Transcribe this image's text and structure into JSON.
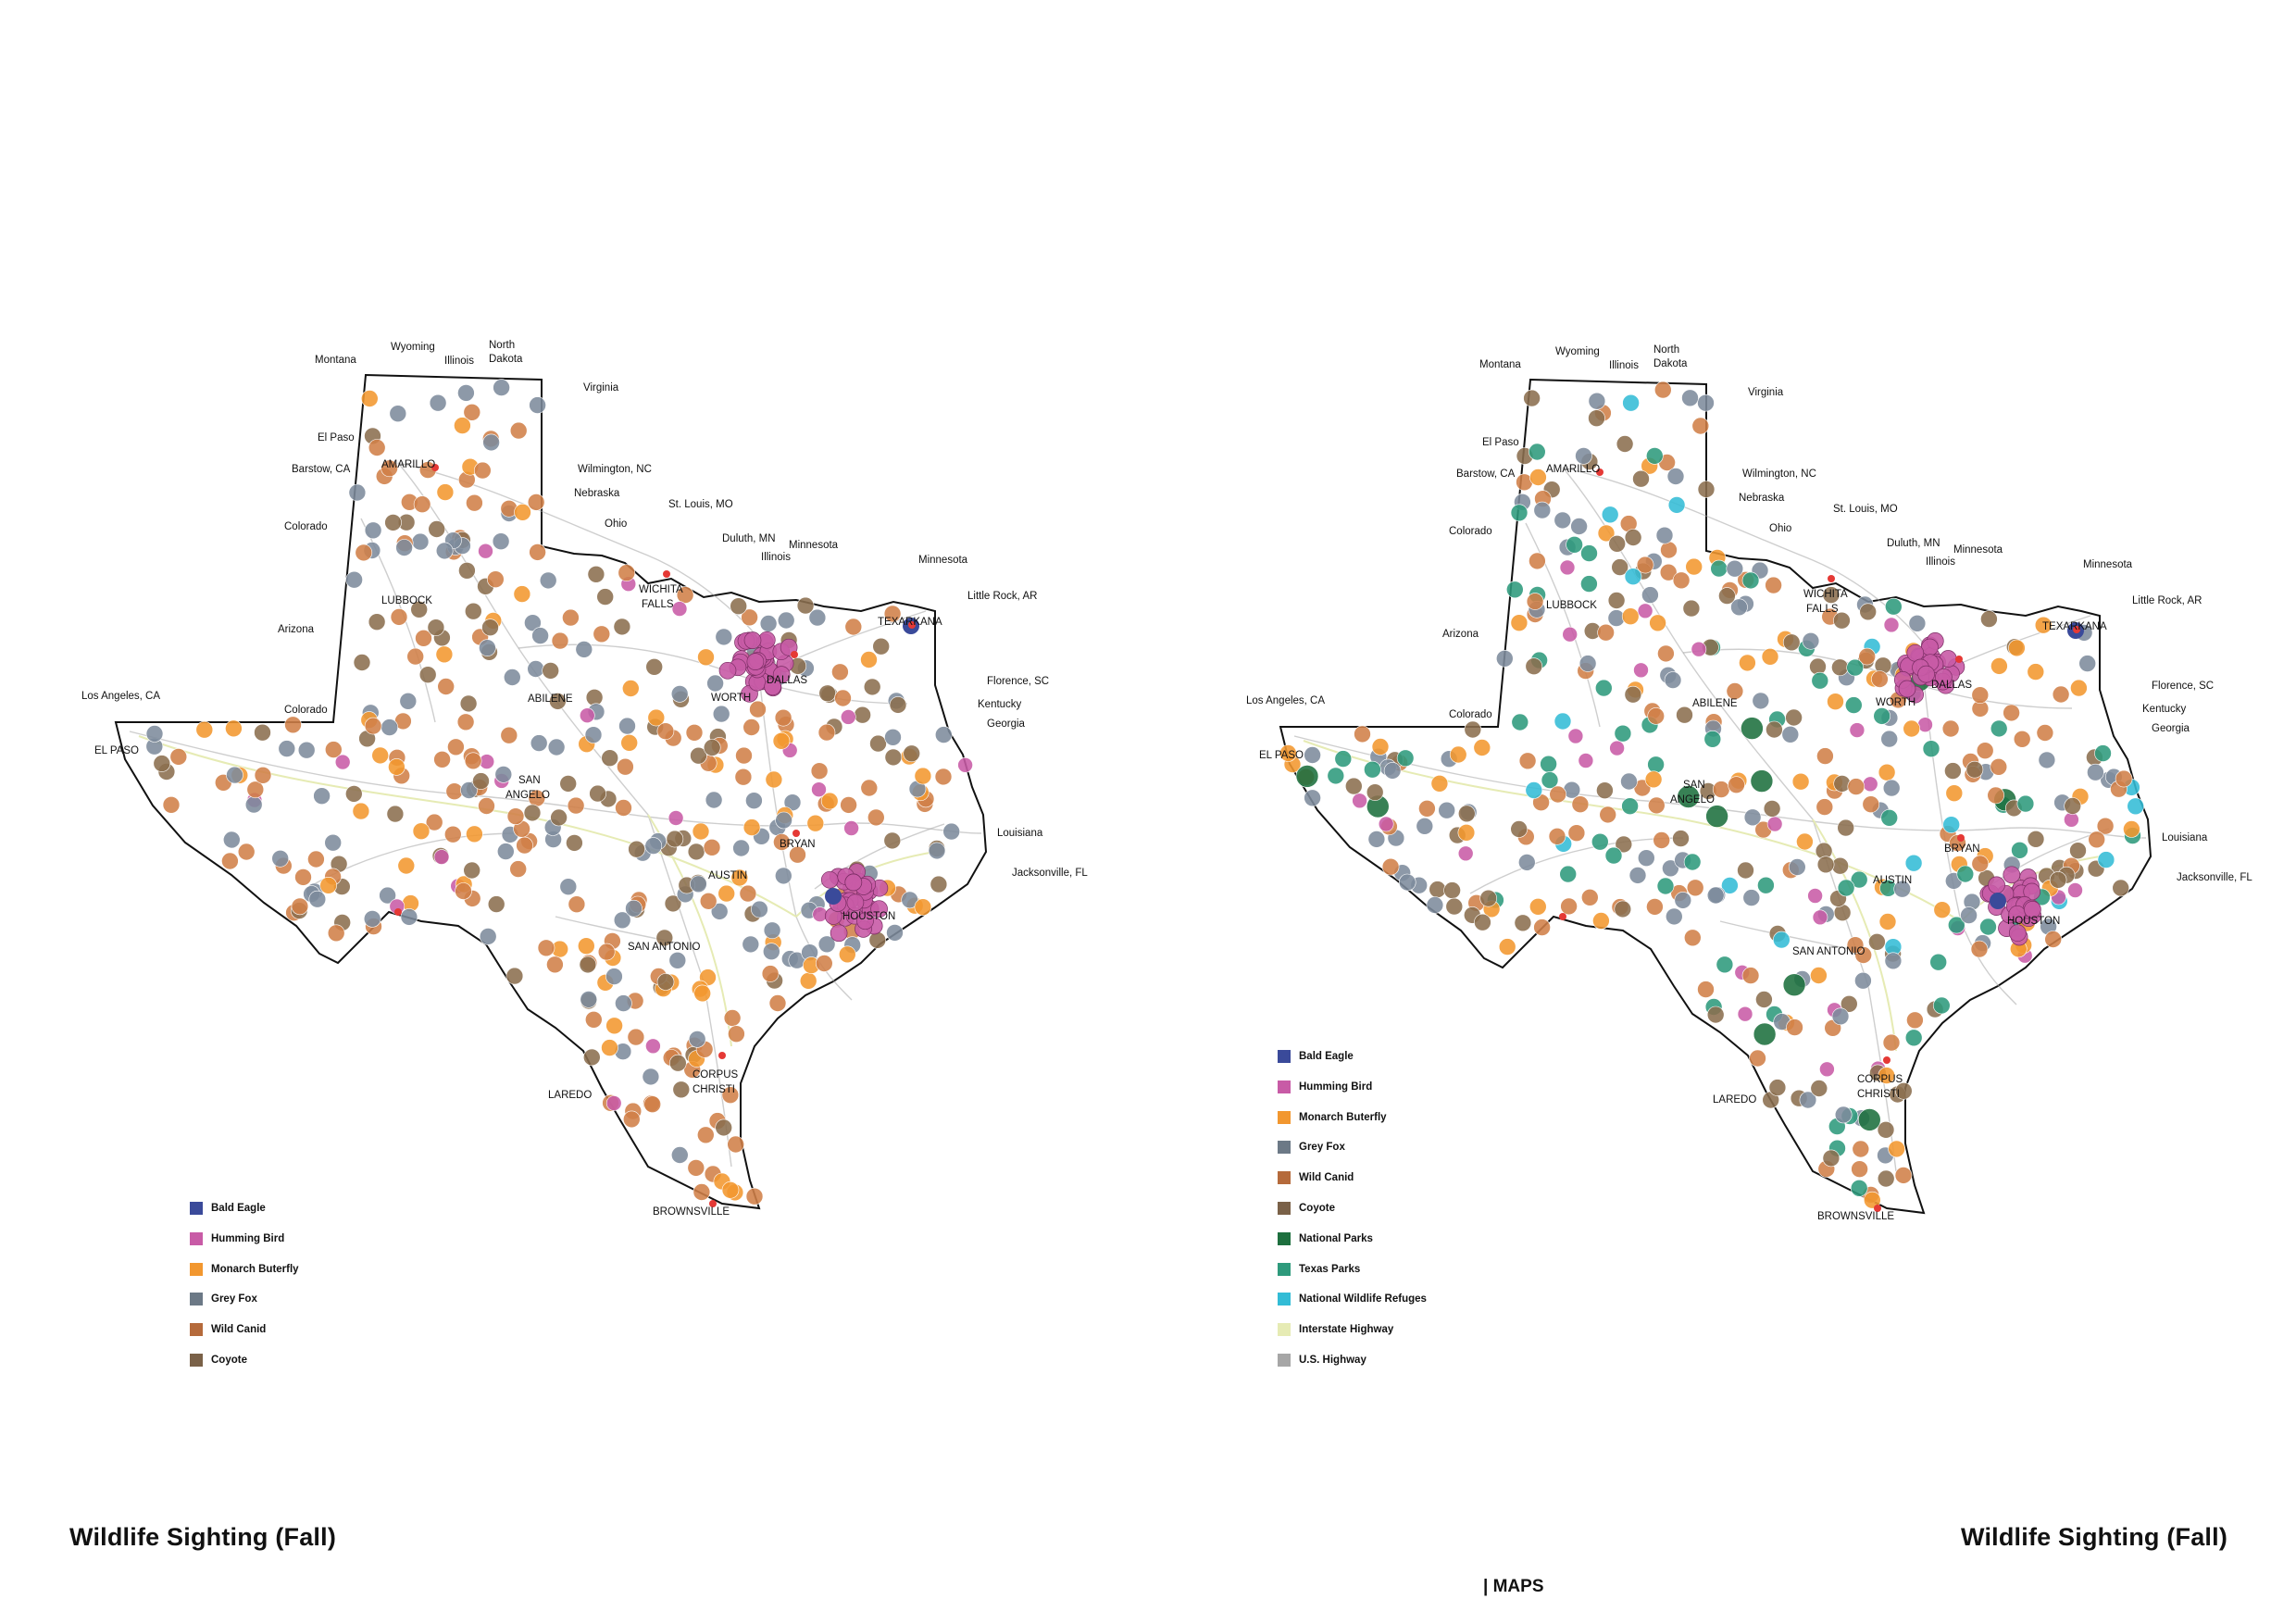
{
  "page_title_left": "Wildlife Sighting (Fall)",
  "page_title_right": "Wildlife Sighting (Fall)",
  "section_label": "| MAPS",
  "colors": {
    "bald_eagle": "#3a4a9a",
    "humming_bird": "#c85ba6",
    "monarch_butterfly": "#f2972f",
    "grey_fox": "#7d8b9c",
    "wild_canid": "#d08048",
    "coyote": "#8b6e4e",
    "national_parks": "#1d6f3e",
    "texas_parks": "#2e9a7c",
    "national_wildlife_refuges": "#33bcd6",
    "interstate_highway": "#e6ebb4",
    "us_highway": "#a6a6a6",
    "city_marker": "#e53935",
    "state_outline": "#111111"
  },
  "legend_left": [
    {
      "label": "Bald Eagle",
      "color": "#3a4a9a"
    },
    {
      "label": "Humming Bird",
      "color": "#c85ba6"
    },
    {
      "label": "Monarch Buterfly",
      "color": "#f2972f"
    },
    {
      "label": "Grey Fox",
      "color": "#6c7986"
    },
    {
      "label": "Wild Canid",
      "color": "#b56a3b"
    },
    {
      "label": "Coyote",
      "color": "#7a6148"
    }
  ],
  "legend_right": [
    {
      "label": "Bald Eagle",
      "color": "#3a4a9a"
    },
    {
      "label": "Humming Bird",
      "color": "#c85ba6"
    },
    {
      "label": "Monarch Buterfly",
      "color": "#f2972f"
    },
    {
      "label": "Grey Fox",
      "color": "#6c7986"
    },
    {
      "label": "Wild Canid",
      "color": "#b56a3b"
    },
    {
      "label": "Coyote",
      "color": "#7a6148"
    },
    {
      "label": "National Parks",
      "color": "#1d6f3e"
    },
    {
      "label": "Texas  Parks",
      "color": "#2e9a7c"
    },
    {
      "label": "National Wildlife Refuges",
      "color": "#33bcd6"
    },
    {
      "label": "Interstate Highway",
      "color": "#e6ebb4"
    },
    {
      "label": "U.S. Highway",
      "color": "#a6a6a6"
    }
  ],
  "cities": [
    "AMARILLO",
    "LUBBOCK",
    "WICHITA FALLS",
    "FT. WORTH",
    "DALLAS",
    "TEXARKANA",
    "ABILENE",
    "EL PASO",
    "SAN ANGELO",
    "BRYAN",
    "AUSTIN",
    "HOUSTON",
    "SAN ANTONIO",
    "CORPUS CHRISTI",
    "LAREDO",
    "BROWNSVILLE"
  ],
  "map_labels": {
    "amarillo": "AMARILLO",
    "lubbock": "LUBBOCK",
    "wichita_1": "WICHITA",
    "wichita_2": "FALLS",
    "worth": "WORTH",
    "dallas": "DALLAS",
    "texarkana": "TEXARKANA",
    "abilene": "ABILENE",
    "el_paso_city": "EL PASO",
    "san_1": "SAN",
    "san_2": "ANGELO",
    "bryan": "BRYAN",
    "austin": "AUSTIN",
    "houston": "HOUSTON",
    "san_antonio": "SAN ANTONIO",
    "corpus_1": "CORPUS",
    "corpus_2": "CHRISTI",
    "laredo": "LAREDO",
    "brownsville": "BROWNSVILLE",
    "montana": "Montana",
    "wyoming": "Wyoming",
    "illinois": "Illinois",
    "north": "North",
    "dakota": "Dakota",
    "virginia": "Virginia",
    "el_paso_dest": "El Paso",
    "barstow": "Barstow, CA",
    "wilmington": "Wilmington, NC",
    "colorado": "Colorado",
    "colorado2": "Colorado",
    "nebraska": "Nebraska",
    "st_louis": "St. Louis, MO",
    "ohio": "Ohio",
    "duluth": "Duluth, MN",
    "minnesota": "Minnesota",
    "minnesota2": "Minnesota",
    "illinois2": "Illinois",
    "little_rock": "Little Rock, AR",
    "arizona": "Arizona",
    "los_angeles": "Los Angeles, CA",
    "florence": "Florence, SC",
    "kentucky": "Kentucky",
    "georgia": "Georgia",
    "louisiana": "Louisiana",
    "jacksonville": "Jacksonville, FL"
  }
}
